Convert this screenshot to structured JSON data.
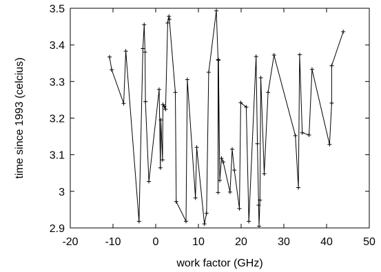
{
  "chart_data": {
    "type": "line",
    "title": "",
    "xlabel": "work factor (GHz)",
    "ylabel": "time since 1993 (celcius)",
    "xlim": [
      -20,
      50
    ],
    "ylim": [
      2.9,
      3.5
    ],
    "x_ticks": [
      -20,
      -10,
      0,
      10,
      20,
      30,
      40,
      50
    ],
    "y_ticks": [
      2.9,
      3.0,
      3.1,
      3.2,
      3.3,
      3.4,
      3.5
    ],
    "x_tick_labels": [
      "-20",
      "-10",
      "0",
      "10",
      "20",
      "30",
      "40",
      "50"
    ],
    "y_tick_labels": [
      "2.9",
      "3",
      "3.1",
      "3.2",
      "3.3",
      "3.4",
      "3.5"
    ],
    "grid": false,
    "legend": "none",
    "marker": "plus",
    "line_color": "#000000",
    "series": [
      {
        "x": [
          -10.8,
          -10.3,
          -7.5,
          -7.0,
          -3.9,
          -3.0,
          -2.7,
          -2.5,
          -2.4,
          -1.6,
          0.8,
          1.1,
          1.2,
          1.6,
          1.7,
          2.0,
          2.3,
          2.8,
          3.1,
          3.2,
          4.6,
          4.8,
          7.1,
          7.4,
          9.3,
          9.6,
          11.4,
          11.9,
          12.4,
          14.2,
          14.6,
          14.6,
          14.7,
          15.0,
          15.4,
          15.8,
          17.4,
          17.9,
          18.4,
          19.6,
          19.9,
          21.2,
          21.8,
          23.5,
          23.8,
          24.1,
          24.2,
          24.4,
          24.6,
          25.4,
          26.3,
          27.7,
          32.7,
          33.4,
          33.7,
          34.3,
          35.9,
          36.6,
          40.7,
          41.2,
          41.2,
          43.9
        ],
        "y": [
          3.367,
          3.332,
          3.24,
          3.383,
          2.918,
          3.39,
          3.455,
          3.38,
          3.245,
          3.027,
          3.278,
          3.064,
          3.195,
          3.086,
          3.237,
          3.232,
          3.224,
          3.46,
          3.478,
          3.47,
          3.27,
          2.972,
          2.918,
          3.305,
          2.982,
          3.12,
          2.911,
          2.94,
          3.325,
          3.493,
          3.36,
          2.997,
          3.358,
          3.03,
          3.09,
          3.08,
          2.998,
          3.115,
          3.058,
          2.953,
          3.242,
          3.23,
          2.918,
          3.368,
          3.13,
          2.962,
          2.905,
          2.976,
          3.31,
          3.048,
          3.27,
          3.372,
          3.152,
          3.01,
          3.373,
          3.16,
          3.154,
          3.333,
          3.128,
          3.241,
          3.343,
          3.436
        ]
      }
    ]
  }
}
